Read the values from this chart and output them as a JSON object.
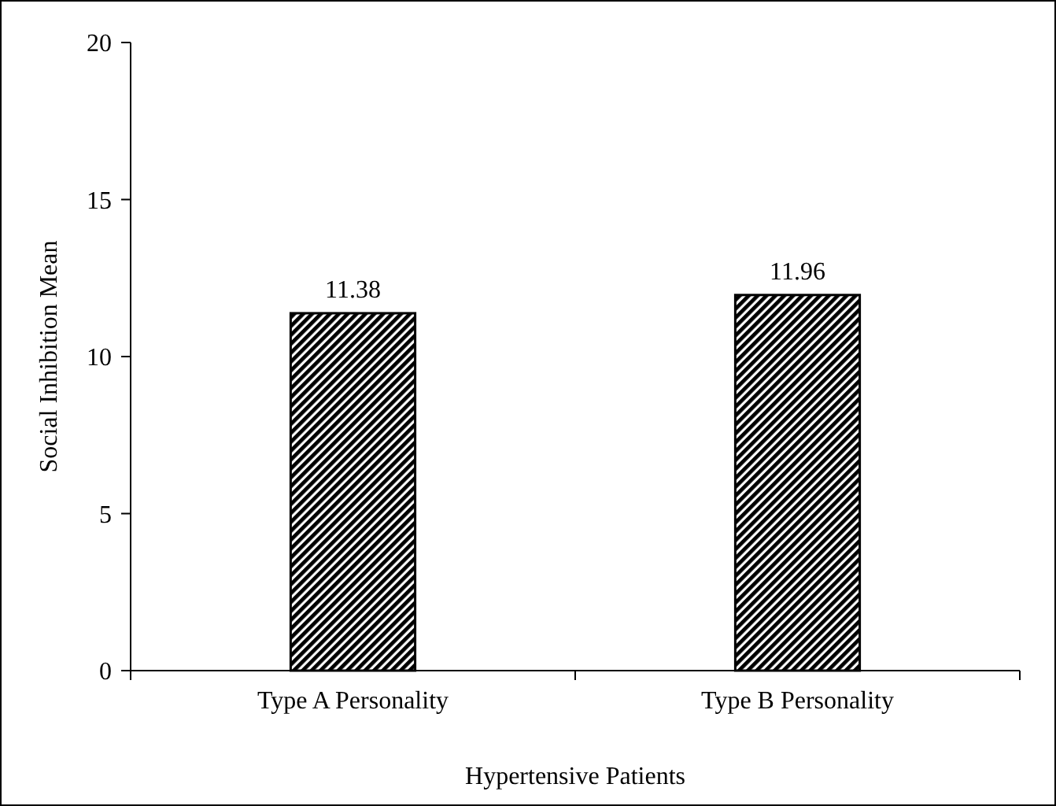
{
  "chart_data": {
    "type": "bar",
    "xlabel": "Hypertensive Patients",
    "ylabel": "Social Inhibition Mean",
    "categories": [
      "Type A Personality",
      "Type B Personality"
    ],
    "values": [
      11.38,
      11.96
    ],
    "color": "#000000",
    "ylim": [
      0,
      20
    ],
    "yticks": [
      0,
      5,
      10,
      15,
      20
    ],
    "grid": false,
    "data_labels": true
  }
}
